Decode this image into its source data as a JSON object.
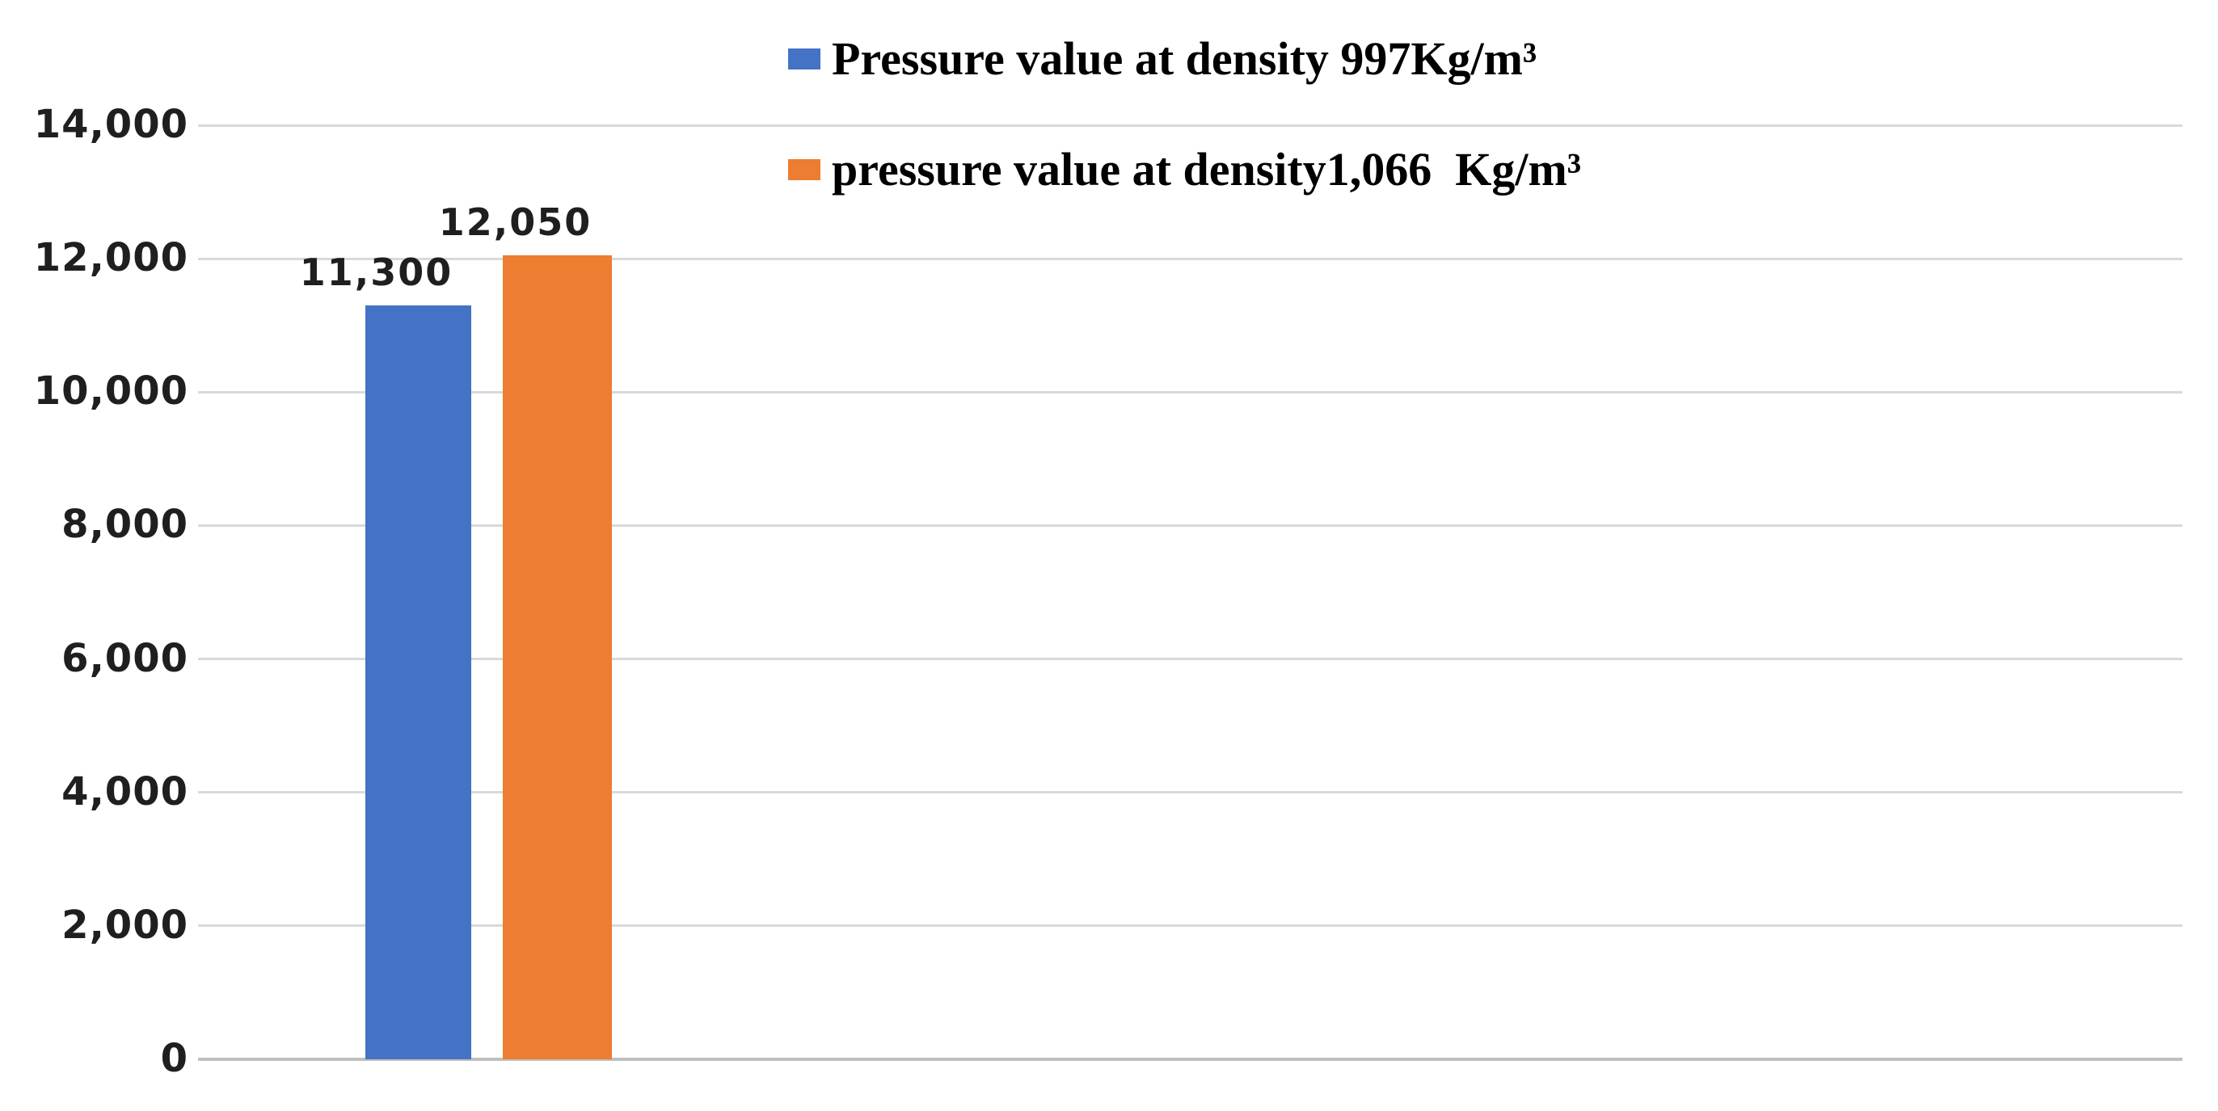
{
  "chart_data": {
    "type": "bar",
    "title": "",
    "xlabel": "",
    "ylabel": "",
    "categories": [
      ""
    ],
    "series": [
      {
        "name": "Pressure value at density 997Kg/m³",
        "value": 11300,
        "data_label": "11,300",
        "color": "#4472C4"
      },
      {
        "name": "pressure value at density1,066  Kg/m³",
        "value": 12050,
        "data_label": "12,050",
        "color": "#ED7D31"
      }
    ],
    "ylim": [
      0,
      14000
    ],
    "ytick_interval": 2000,
    "ytick_labels": [
      "0",
      "2,000",
      "4,000",
      "6,000",
      "8,000",
      "10,000",
      "12,000",
      "14,000"
    ],
    "grid": true,
    "gridline_color": "#D9D9D9",
    "axis_line_color": "#BFBFBF",
    "legend_position": "top-center"
  }
}
